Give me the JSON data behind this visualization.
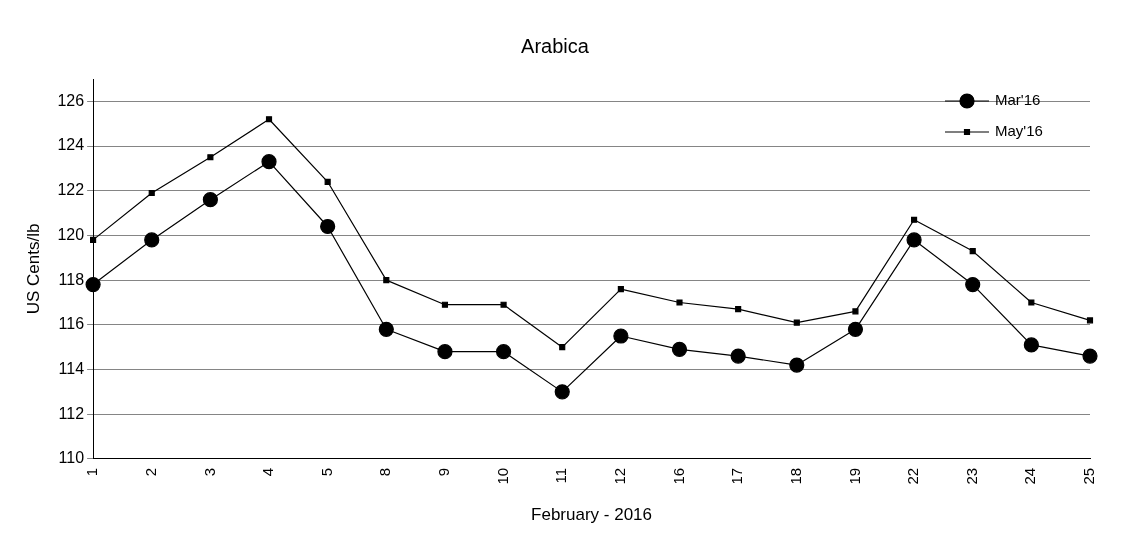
{
  "chart_data": {
    "type": "line",
    "title": "Arabica",
    "xlabel": "February - 2016",
    "ylabel": "US Cents/lb",
    "categories": [
      "1",
      "2",
      "3",
      "4",
      "5",
      "8",
      "9",
      "10",
      "11",
      "12",
      "16",
      "17",
      "18",
      "19",
      "22",
      "23",
      "24",
      "25"
    ],
    "series": [
      {
        "name": "Mar'16",
        "color": "#000000",
        "marker": "circle",
        "values": [
          117.8,
          119.8,
          121.6,
          123.3,
          120.4,
          115.8,
          114.8,
          114.8,
          113.0,
          115.5,
          114.9,
          114.6,
          114.2,
          115.8,
          119.8,
          117.8,
          115.1,
          114.6
        ]
      },
      {
        "name": "May'16",
        "color": "#000000",
        "marker": "square",
        "values": [
          119.8,
          121.9,
          123.5,
          125.2,
          122.4,
          118.0,
          116.9,
          116.9,
          115.0,
          117.6,
          117.0,
          116.7,
          116.1,
          116.6,
          120.7,
          119.3,
          117.0,
          116.2
        ]
      }
    ],
    "ylim": [
      110,
      127
    ],
    "yticks": [
      110,
      112,
      114,
      116,
      118,
      120,
      122,
      124,
      126
    ],
    "grid": "y",
    "legend": "top right",
    "line_style": "solid"
  }
}
